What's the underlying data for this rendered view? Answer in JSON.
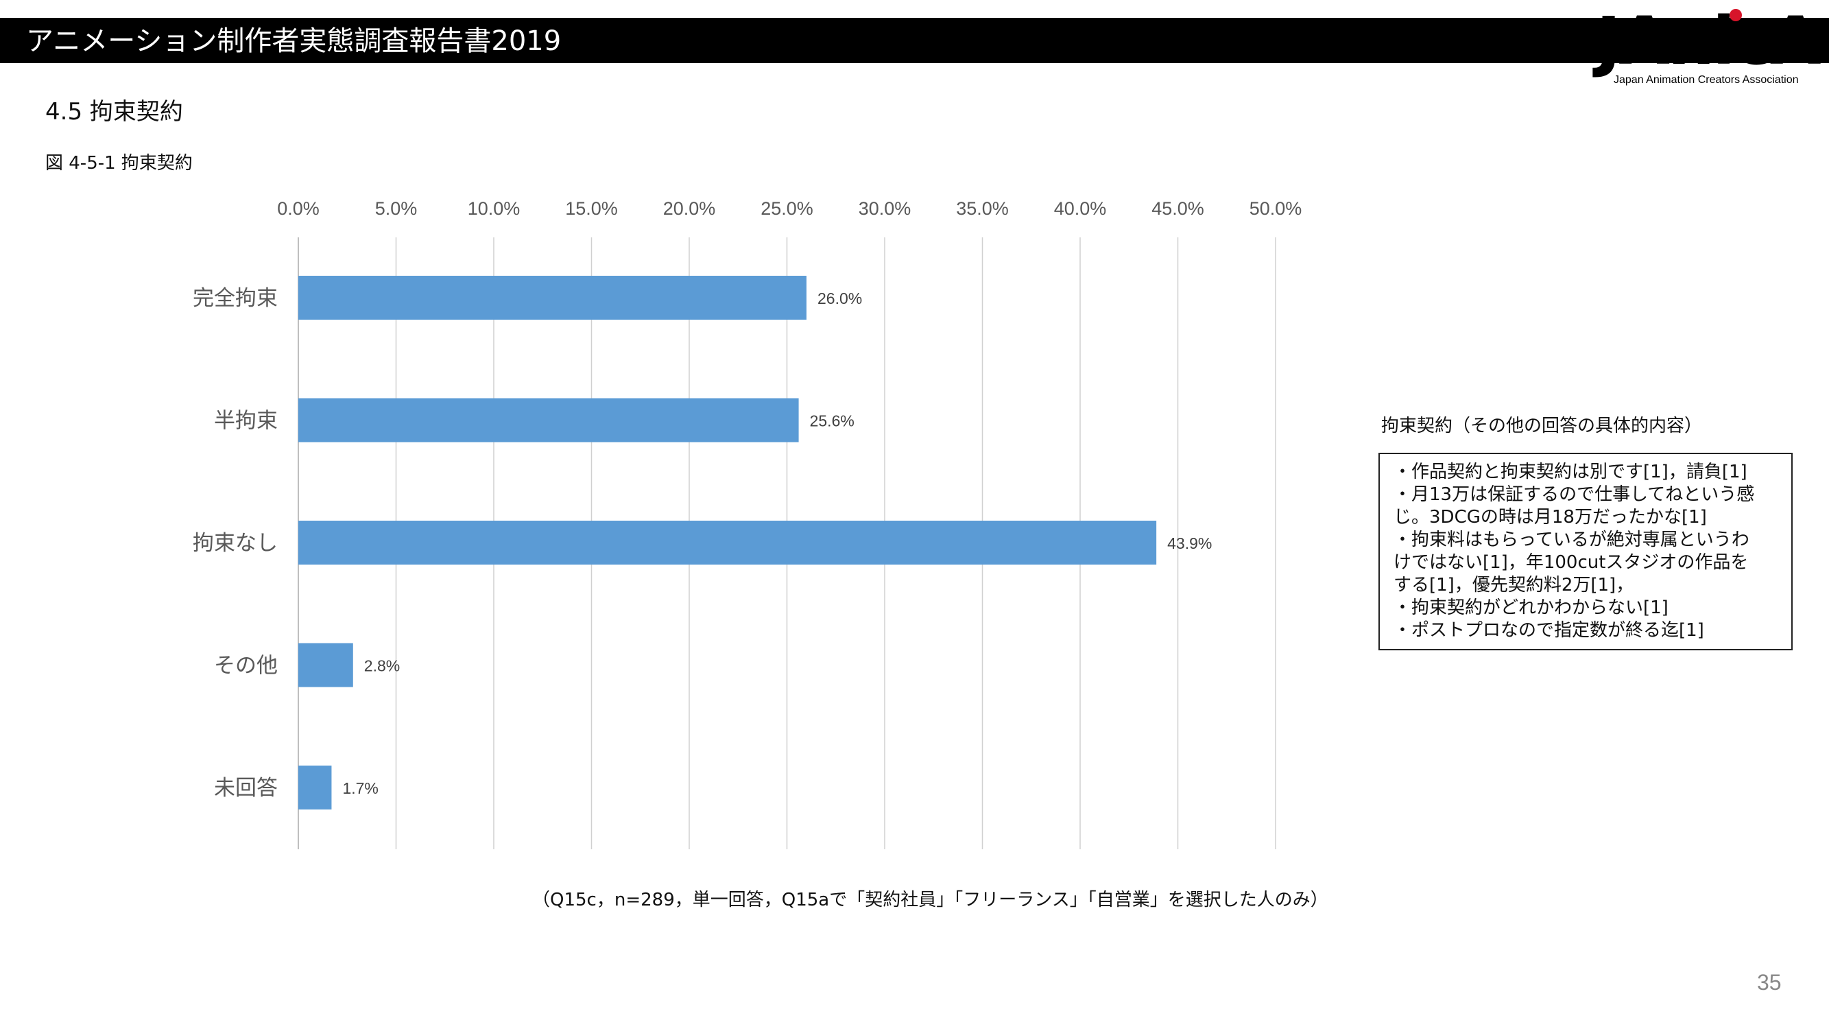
{
  "header": {
    "title": "アニメーション制作者実態調査報告書2019"
  },
  "logo": {
    "wordmark": "JAnicA",
    "subtitle": "Japan Animation Creators Association",
    "accent_color": "#d7142a"
  },
  "section": {
    "heading": "4.5  拘束契約",
    "figure_caption": "図 4-5-1  拘束契約"
  },
  "chart_data": {
    "type": "bar",
    "orientation": "horizontal",
    "categories": [
      "完全拘束",
      "半拘束",
      "拘束なし",
      "その他",
      "未回答"
    ],
    "values": [
      26.0,
      25.6,
      43.9,
      2.8,
      1.7
    ],
    "value_labels": [
      "26.0%",
      "25.6%",
      "43.9%",
      "2.8%",
      "1.7%"
    ],
    "x_ticks": [
      "0.0%",
      "5.0%",
      "10.0%",
      "15.0%",
      "20.0%",
      "25.0%",
      "30.0%",
      "35.0%",
      "40.0%",
      "45.0%",
      "50.0%"
    ],
    "xlim": [
      0,
      50
    ],
    "x_axis_position": "top",
    "grid": true,
    "bar_color": "#5b9bd5",
    "title": "",
    "xlabel": "",
    "ylabel": ""
  },
  "other_answers": {
    "title": "拘束契約（その他の回答の具体的内容）",
    "lines": [
      "・作品契約と拘束契約は別です[1]，請負[1]",
      "・月13万は保証するので仕事してねという感",
      "じ。3DCGの時は月18万だったかな[1]",
      "・拘束料はもらっているが絶対専属というわ",
      "けではない[1]，年100cutスタジオの作品を",
      "する[1]，優先契約料2万[1]，",
      "・拘束契約がどれかわからない[1]",
      "・ポストプロなので指定数が終る迄[1]"
    ]
  },
  "footnote": "（Q15c，n=289，単一回答，Q15aで「契約社員」「フリーランス」「自営業」を選択した人のみ）",
  "page_number": "35"
}
